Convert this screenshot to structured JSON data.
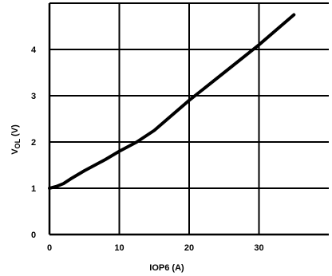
{
  "chart_data": {
    "type": "line",
    "title": "",
    "xlabel": "IOP6 (A)",
    "ylabel_main": "V",
    "ylabel_sub": "OL",
    "ylabel_unit": " (V)",
    "xlim": [
      0,
      40
    ],
    "ylim": [
      0,
      5
    ],
    "xticks": [
      0,
      10,
      20,
      30
    ],
    "yticks": [
      0,
      1,
      2,
      3,
      4
    ],
    "xticklabels": [
      "0",
      "10",
      "20",
      "30"
    ],
    "yticklabels": [
      "0",
      "1",
      "2",
      "3",
      "4"
    ],
    "grid": true,
    "legend": "none",
    "series": [
      {
        "x": [
          0,
          1,
          2,
          3,
          5,
          8,
          10,
          12.5,
          15,
          20,
          25,
          30,
          35
        ],
        "y": [
          1.0,
          1.04,
          1.1,
          1.2,
          1.38,
          1.62,
          1.8,
          2.0,
          2.25,
          2.9,
          3.5,
          4.1,
          4.75
        ]
      }
    ]
  }
}
